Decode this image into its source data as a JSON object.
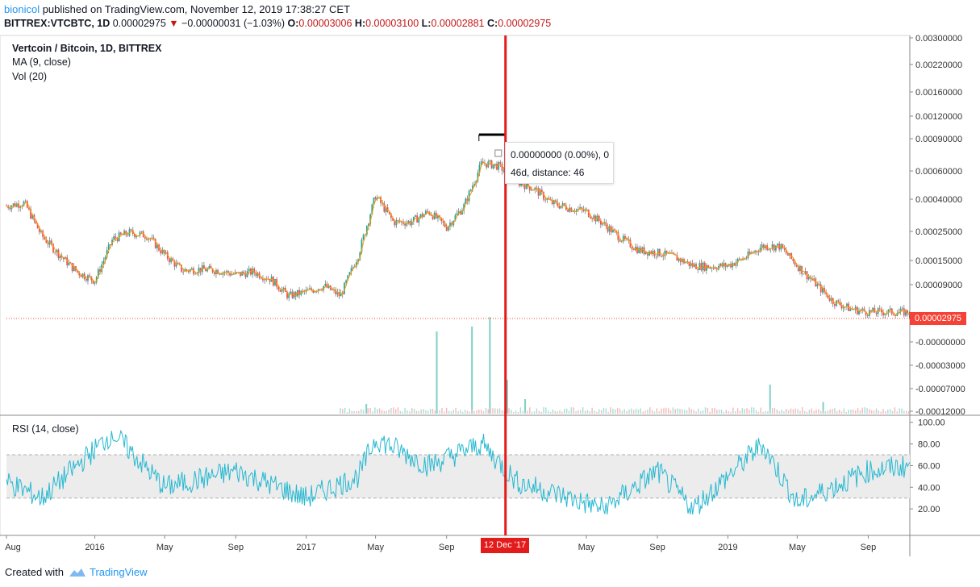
{
  "header": {
    "author": "bionicol",
    "published": " published on TradingView.com, November 12, 2019 17:38:27 CET",
    "symbol": "BITTREX:VTCBTC, 1D",
    "price": "0.00002975",
    "change": "−0.00000031 (−1.03%)",
    "open_label": "O:",
    "open": "0.00003006",
    "high_label": "H:",
    "high": "0.00003100",
    "low_label": "L:",
    "low": "0.00002881",
    "close_label": "C:",
    "close": "0.00002975"
  },
  "legend": {
    "title": "Vertcoin / Bitcoin, 1D, BITTREX",
    "ma": "MA (9, close)",
    "vol": "Vol (20)",
    "rsi": "RSI (14, close)"
  },
  "tooltip": {
    "line1": "0.00000000 (0.00%), 0",
    "line2": "46d, distance: 46"
  },
  "last_price_label": "0.00002975",
  "crosshair_date": "12 Dec '17",
  "footer": {
    "created": "Created with",
    "brand": "TradingView"
  },
  "colors": {
    "up": "#26a69a",
    "down": "#ef5350",
    "ma": "#ff9800",
    "rsi": "#26b8d1",
    "marker": "#e31b1b",
    "price_line": "#f44336"
  },
  "chart_data": [
    {
      "type": "candlestick",
      "title": "Vertcoin / Bitcoin, 1D, BITTREX",
      "scale": "log",
      "x_ticks": [
        "Aug",
        "2016",
        "May",
        "Sep",
        "2017",
        "May",
        "Sep",
        "12 Dec '17",
        "May",
        "Sep",
        "2019",
        "May",
        "Sep"
      ],
      "y_ticks": [
        "0.00300000",
        "0.00220000",
        "0.00160000",
        "0.00120000",
        "0.00090000",
        "0.00060000",
        "0.00040000",
        "0.00025000",
        "0.00015000",
        "0.00009000",
        "0.00002975",
        "-0.00000000",
        "-0.00003000",
        "-0.00007000",
        "-0.00012000"
      ],
      "close_series_approx": {
        "x": [
          "2015-08",
          "2015-09",
          "2015-10",
          "2015-11",
          "2015-12",
          "2016-01",
          "2016-02",
          "2016-03",
          "2016-04",
          "2016-05",
          "2016-06",
          "2016-07",
          "2016-08",
          "2016-09",
          "2016-10",
          "2016-11",
          "2016-12",
          "2017-01",
          "2017-02",
          "2017-03",
          "2017-04",
          "2017-05",
          "2017-06",
          "2017-07",
          "2017-08",
          "2017-09",
          "2017-10",
          "2017-11",
          "2017-12",
          "2018-01",
          "2018-02",
          "2018-03",
          "2018-04",
          "2018-05",
          "2018-06",
          "2018-07",
          "2018-08",
          "2018-09",
          "2018-10",
          "2018-11",
          "2018-12",
          "2019-01",
          "2019-02",
          "2019-03",
          "2019-04",
          "2019-05",
          "2019-06",
          "2019-07",
          "2019-08",
          "2019-09",
          "2019-10",
          "2019-11"
        ],
        "y": [
          0.00028,
          0.0003,
          0.00015,
          0.0001,
          7e-05,
          5.8e-05,
          0.00014,
          0.00016,
          0.00015,
          0.0001,
          7.2e-05,
          7.4e-05,
          7.2e-05,
          6.6e-05,
          7e-05,
          6e-05,
          4.2e-05,
          4.6e-05,
          5.2e-05,
          4.2e-05,
          0.0001,
          0.00035,
          0.0002,
          0.0002,
          0.00025,
          0.00018,
          0.00028,
          0.0007,
          0.00065,
          0.00047,
          0.0004,
          0.0003,
          0.00027,
          0.00025,
          0.00019,
          0.00014,
          0.00011,
          0.000105,
          9.5e-05,
          8e-05,
          7.8e-05,
          8e-05,
          9.5e-05,
          0.00012,
          0.00012,
          8e-05,
          5.5e-05,
          3.8e-05,
          3.2e-05,
          3e-05,
          3e-05,
          2.975e-05
        ]
      },
      "overlays": [
        "MA (9, close)"
      ],
      "measure": {
        "start": "2017-10-27",
        "end": "2017-12-12",
        "bars": 46,
        "change": "0.00000000 (0.00%)"
      }
    },
    {
      "type": "bar",
      "title": "Vol (20)",
      "note": "volume histogram; peaks around Nov–Dec 2017",
      "x": [
        "2017-04",
        "2017-08",
        "2017-10",
        "2017-11",
        "2017-12",
        "2018-01",
        "2019-03",
        "2019-06"
      ],
      "values_relative": [
        0.1,
        0.85,
        0.9,
        1.0,
        0.35,
        0.15,
        0.3,
        0.12
      ]
    },
    {
      "type": "line",
      "title": "RSI (14, close)",
      "y_ticks": [
        "100.00",
        "80.00",
        "60.00",
        "40.00",
        "20.00"
      ],
      "ylim": [
        0,
        100
      ],
      "bands": [
        30,
        70
      ],
      "x": [
        "2015-08",
        "2015-10",
        "2016-02",
        "2016-05",
        "2016-09",
        "2017-01",
        "2017-04",
        "2017-05",
        "2017-08",
        "2017-11",
        "2018-01",
        "2018-04",
        "2018-06",
        "2018-09",
        "2018-11",
        "2019-01",
        "2019-03",
        "2019-05",
        "2019-07",
        "2019-09",
        "2019-11"
      ],
      "values": [
        45,
        30,
        90,
        40,
        55,
        30,
        50,
        85,
        60,
        80,
        45,
        30,
        20,
        55,
        20,
        50,
        80,
        25,
        40,
        55,
        60
      ]
    }
  ]
}
